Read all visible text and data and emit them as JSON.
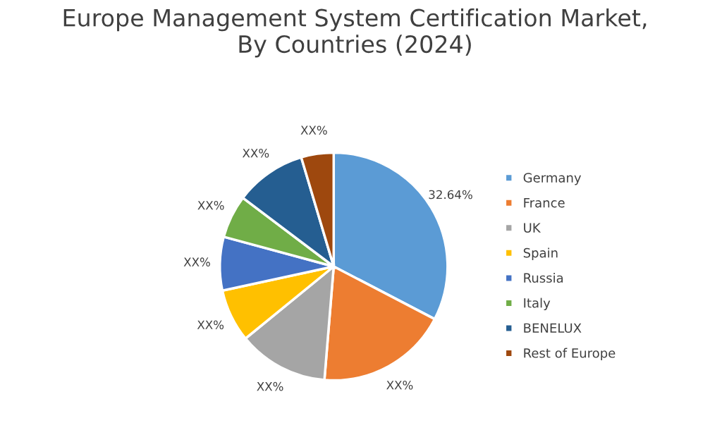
{
  "chart_data": {
    "type": "pie",
    "title": "Europe Management System Certification Market,\nBy Countries (2024)",
    "categories": [
      "Germany",
      "France",
      "UK",
      "Spain",
      "Russia",
      "Italy",
      "BENELUX",
      "Rest of Europe"
    ],
    "values": [
      32.64,
      18.66,
      12.8,
      7.5,
      7.6,
      6.1,
      10.1,
      4.6
    ],
    "value_labels": [
      "32.64%",
      "XX%",
      "XX%",
      "XX%",
      "XX%",
      "XX%",
      "XX%",
      "XX%"
    ],
    "colors": [
      "#5b9bd5",
      "#ed7d31",
      "#a5a5a5",
      "#ffc000",
      "#4472c4",
      "#70ad47",
      "#255e91",
      "#9e480e"
    ],
    "legend": "right"
  }
}
